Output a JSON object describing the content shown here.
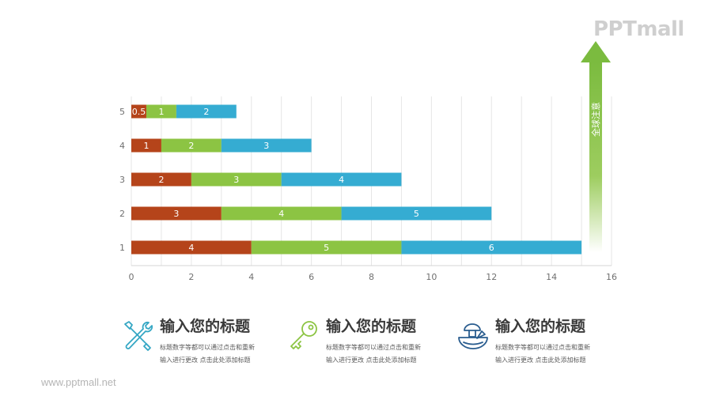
{
  "logo": {
    "text": "PPTmall"
  },
  "footer": {
    "url": "www.pptmall.net"
  },
  "chart_data": {
    "type": "bar",
    "orientation": "horizontal",
    "stacked": true,
    "categories": [
      "1",
      "2",
      "3",
      "4",
      "5"
    ],
    "series": [
      {
        "values": [
          4,
          3,
          2,
          1,
          0.5
        ],
        "color": "#b5441a"
      },
      {
        "values": [
          5,
          4,
          3,
          2,
          1
        ],
        "color": "#8cc443"
      },
      {
        "values": [
          6,
          5,
          4,
          3,
          2
        ],
        "color": "#35acd2"
      }
    ],
    "xlim": [
      0,
      16
    ],
    "xticks": [
      0,
      2,
      4,
      6,
      8,
      10,
      12,
      14,
      16
    ],
    "grid": true,
    "arrow_label": "全球注意",
    "arrow_color": "#7bbb3f"
  },
  "cards": [
    {
      "title": "输入您的标题",
      "desc_line1": "标题数字等都可以通过点击和重新",
      "desc_line2": "输入进行更改 点击此处添加标题",
      "icon": "tools-icon",
      "color": "#35a7c4"
    },
    {
      "title": "输入您的标题",
      "desc_line1": "标题数字等都可以通过点击和重新",
      "desc_line2": "输入进行更改 点击此处添加标题",
      "icon": "key-icon",
      "color": "#8cc443"
    },
    {
      "title": "输入您的标题",
      "desc_line1": "标题数字等都可以通过点击和重新",
      "desc_line2": "输入进行更改 点击此处添加标题",
      "icon": "mushroom-bowl-icon",
      "color": "#2a5d8f"
    }
  ]
}
